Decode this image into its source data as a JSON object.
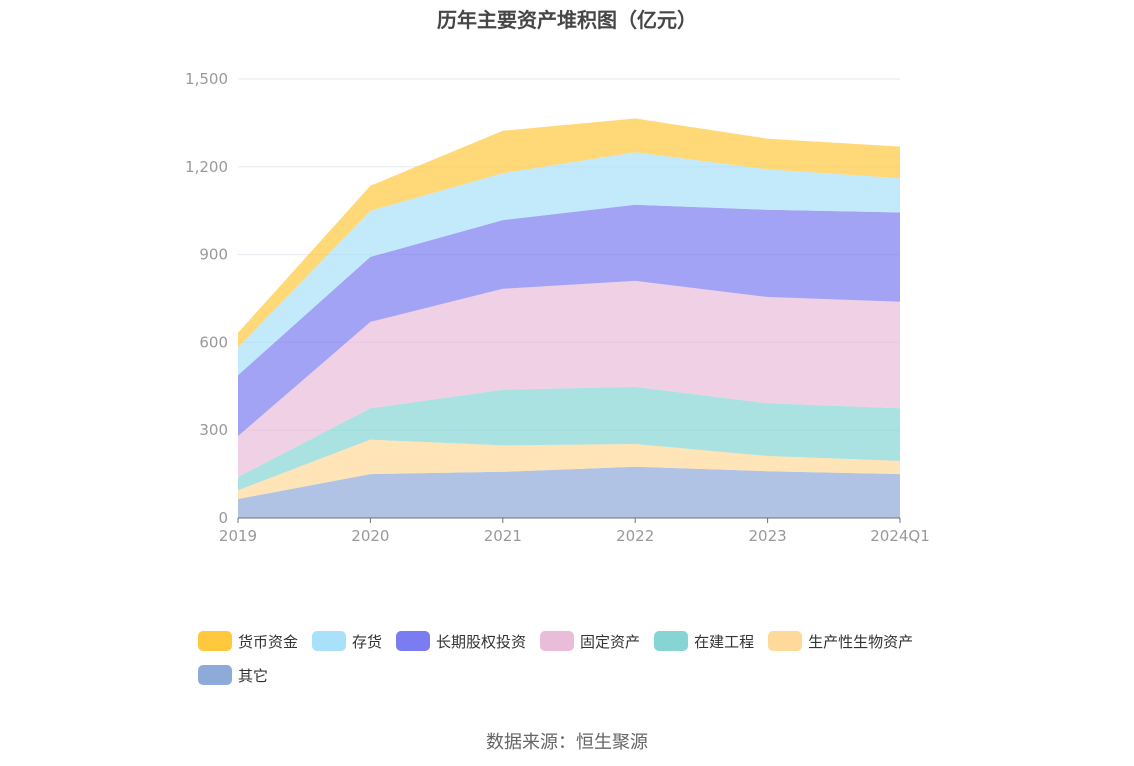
{
  "chart_data": {
    "type": "area",
    "stacked": true,
    "title": "历年主要资产堆积图（亿元）",
    "x": [
      "2019",
      "2020",
      "2021",
      "2022",
      "2023",
      "2024Q1"
    ],
    "ylim": [
      0,
      1500
    ],
    "yticks": [
      "0",
      "300",
      "600",
      "900",
      "1,200",
      "1,500"
    ],
    "grid": true,
    "legend_position": "bottom",
    "series": [
      {
        "name": "其它",
        "color": "#8eaad8",
        "values": [
          65,
          150,
          158,
          175,
          160,
          150
        ]
      },
      {
        "name": "生产性生物资产",
        "color": "#ffd99a",
        "values": [
          30,
          118,
          90,
          78,
          52,
          45
        ]
      },
      {
        "name": "在建工程",
        "color": "#86d5d4",
        "values": [
          45,
          107,
          190,
          195,
          180,
          180
        ]
      },
      {
        "name": "固定资产",
        "color": "#e9bcda",
        "values": [
          140,
          295,
          345,
          362,
          363,
          364
        ]
      },
      {
        "name": "长期股权投资",
        "color": "#7b7cf1",
        "values": [
          208,
          222,
          235,
          260,
          298,
          305
        ]
      },
      {
        "name": "存货",
        "color": "#a9e1fa",
        "values": [
          95,
          158,
          160,
          180,
          138,
          117
        ]
      },
      {
        "name": "货币资金",
        "color": "#ffc83d",
        "values": [
          50,
          85,
          145,
          115,
          105,
          108
        ]
      }
    ],
    "legend_order": [
      "货币资金",
      "存货",
      "长期股权投资",
      "固定资产",
      "在建工程",
      "生产性生物资产",
      "其它"
    ]
  },
  "footer": {
    "source": "数据来源：恒生聚源"
  }
}
